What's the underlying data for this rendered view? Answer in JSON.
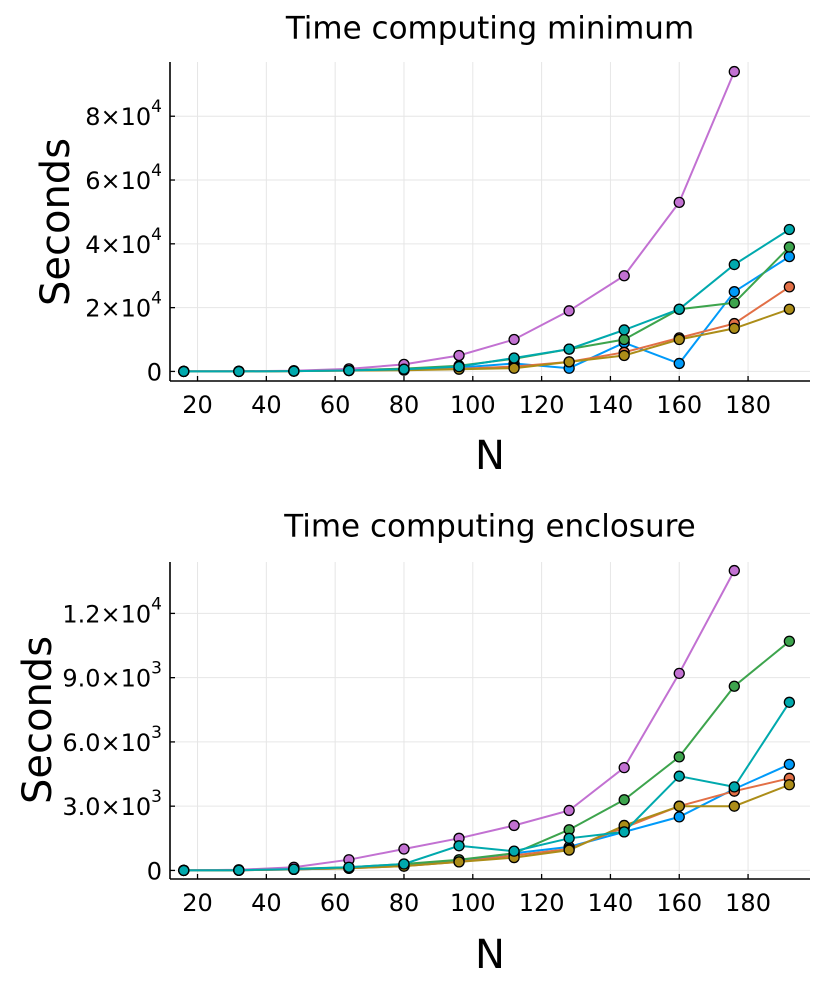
{
  "chart_data": [
    {
      "type": "line",
      "title": "Time computing minimum",
      "xlabel": "N",
      "ylabel": "Seconds",
      "xlim": [
        12,
        198
      ],
      "ylim": [
        -3000,
        97000
      ],
      "xticks": [
        20,
        40,
        60,
        80,
        100,
        120,
        140,
        160,
        180
      ],
      "yticks": [
        {
          "value": 0,
          "mantissa": "0",
          "exponent": ""
        },
        {
          "value": 20000,
          "mantissa": "2×10",
          "exponent": "4"
        },
        {
          "value": 40000,
          "mantissa": "4×10",
          "exponent": "4"
        },
        {
          "value": 60000,
          "mantissa": "6×10",
          "exponent": "4"
        },
        {
          "value": 80000,
          "mantissa": "8×10",
          "exponent": "4"
        }
      ],
      "grid": true,
      "legend": "none",
      "series": [
        {
          "name": "series 1",
          "color": "#009af9",
          "x": [
            16,
            32,
            48,
            64,
            80,
            96,
            112,
            128,
            144,
            160,
            176,
            192
          ],
          "y": [
            0,
            0,
            150,
            400,
            800,
            1200,
            2500,
            1000,
            9000,
            2500,
            25000,
            36000
          ]
        },
        {
          "name": "series 2",
          "color": "#e26f46",
          "x": [
            16,
            32,
            48,
            64,
            80,
            96,
            112,
            128,
            144,
            160,
            176,
            192
          ],
          "y": [
            0,
            0,
            100,
            300,
            500,
            800,
            1500,
            3000,
            6000,
            10500,
            15000,
            26500
          ]
        },
        {
          "name": "series 3",
          "color": "#3da44d",
          "x": [
            16,
            32,
            48,
            64,
            80,
            96,
            112,
            128,
            144,
            160,
            176,
            192
          ],
          "y": [
            0,
            0,
            150,
            400,
            900,
            1800,
            4000,
            7000,
            10000,
            19500,
            21500,
            39000
          ]
        },
        {
          "name": "series 4",
          "color": "#c271d2",
          "x": [
            16,
            32,
            48,
            64,
            80,
            96,
            112,
            128,
            144,
            160,
            176
          ],
          "y": [
            0,
            50,
            200,
            800,
            2200,
            5000,
            10000,
            19000,
            30000,
            53000,
            94000
          ]
        },
        {
          "name": "series 5",
          "color": "#ac8d18",
          "x": [
            16,
            32,
            48,
            64,
            80,
            96,
            112,
            128,
            144,
            160,
            176,
            192
          ],
          "y": [
            0,
            0,
            100,
            250,
            400,
            700,
            1000,
            3000,
            5000,
            10000,
            13500,
            19500
          ]
        },
        {
          "name": "series 6",
          "color": "#00a9ad",
          "x": [
            16,
            32,
            48,
            64,
            80,
            96,
            112,
            128,
            144,
            160,
            176,
            192
          ],
          "y": [
            0,
            0,
            100,
            300,
            700,
            1500,
            4200,
            7000,
            13000,
            19500,
            33500,
            44500
          ]
        }
      ]
    },
    {
      "type": "line",
      "title": "Time computing enclosure",
      "xlabel": "N",
      "ylabel": "Seconds",
      "xlim": [
        12,
        198
      ],
      "ylim": [
        -400,
        14400
      ],
      "xticks": [
        20,
        40,
        60,
        80,
        100,
        120,
        140,
        160,
        180
      ],
      "yticks": [
        {
          "value": 0,
          "mantissa": "0",
          "exponent": ""
        },
        {
          "value": 3000,
          "mantissa": "3.0×10",
          "exponent": "3"
        },
        {
          "value": 6000,
          "mantissa": "6.0×10",
          "exponent": "3"
        },
        {
          "value": 9000,
          "mantissa": "9.0×10",
          "exponent": "3"
        },
        {
          "value": 12000,
          "mantissa": "1.2×10",
          "exponent": "4"
        }
      ],
      "grid": true,
      "legend": "none",
      "series": [
        {
          "name": "series 1",
          "color": "#009af9",
          "x": [
            16,
            32,
            48,
            64,
            80,
            96,
            112,
            128,
            144,
            160,
            176,
            192
          ],
          "y": [
            0,
            10,
            50,
            100,
            250,
            450,
            800,
            1100,
            1800,
            2500,
            3800,
            4950
          ]
        },
        {
          "name": "series 2",
          "color": "#e26f46",
          "x": [
            16,
            32,
            48,
            64,
            80,
            96,
            112,
            128,
            144,
            160,
            176,
            192
          ],
          "y": [
            0,
            10,
            50,
            100,
            200,
            400,
            700,
            1000,
            2000,
            3000,
            3700,
            4300
          ]
        },
        {
          "name": "series 3",
          "color": "#3da44d",
          "x": [
            16,
            32,
            48,
            64,
            80,
            96,
            112,
            128,
            144,
            160,
            176,
            192
          ],
          "y": [
            0,
            10,
            80,
            150,
            300,
            500,
            800,
            1900,
            3300,
            5300,
            8600,
            10700
          ]
        },
        {
          "name": "series 4",
          "color": "#c271d2",
          "x": [
            16,
            32,
            48,
            64,
            80,
            96,
            112,
            128,
            144,
            160,
            176
          ],
          "y": [
            0,
            30,
            150,
            500,
            1000,
            1500,
            2100,
            2800,
            4800,
            9200,
            14000
          ]
        },
        {
          "name": "series 5",
          "color": "#ac8d18",
          "x": [
            16,
            32,
            48,
            64,
            80,
            96,
            112,
            128,
            144,
            160,
            176,
            192
          ],
          "y": [
            0,
            10,
            50,
            100,
            200,
            400,
            600,
            950,
            2100,
            3000,
            3000,
            4000
          ]
        },
        {
          "name": "series 6",
          "color": "#00a9ad",
          "x": [
            16,
            32,
            48,
            64,
            80,
            96,
            112,
            128,
            144,
            160,
            176,
            192
          ],
          "y": [
            0,
            10,
            60,
            150,
            300,
            1150,
            900,
            1500,
            1800,
            4400,
            3900,
            7850
          ]
        }
      ]
    }
  ]
}
